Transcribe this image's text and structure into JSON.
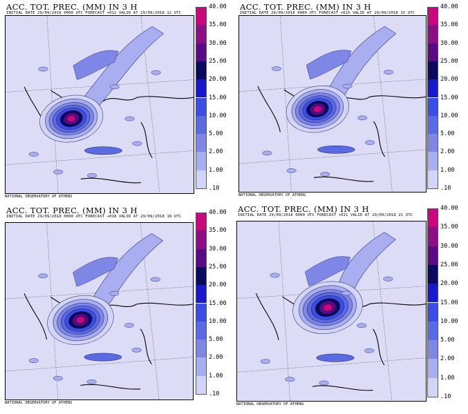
{
  "panels": [
    {
      "title": "ACC. TOT. PREC. (MM) IN 3 H",
      "subtitle": "INITIAL DATE 29/09/2018   0000 UTC FORECAST +012 VALID AT   29/09/2018   12 UTC",
      "credit": "NATIONAL OBSERVATORY OF ATHENS"
    },
    {
      "title": "ACC. TOT. PREC. (MM) IN 3 H",
      "subtitle": "INITIAL DATE 29/09/2018   0000 UTC FORECAST +015 VALID AT   29/09/2018   15 UTC",
      "credit": "NATIONAL OBSERVATORY OF ATHENS"
    },
    {
      "title": "ACC. TOT. PREC. (MM) IN 3 H",
      "subtitle": "INITIAL DATE 29/09/2018   0000 UTC FORECAST +018 VALID AT   29/09/2018   18 UTC",
      "credit": "NATIONAL OBSERVATORY OF ATHENS"
    },
    {
      "title": "ACC. TOT. PREC. (MM) IN 3 H",
      "subtitle": "INITIAL DATE 29/09/2018   0000 UTC FORECAST +021 VALID AT   29/09/2018   21 UTC",
      "credit": "NATIONAL OBSERVATORY OF ATHENS"
    }
  ],
  "legend": {
    "labels": [
      "40.00",
      "35.00",
      "30.00",
      "25.00",
      "20.00",
      "15.00",
      "10.00",
      "5.00",
      "2.00",
      "1.00",
      ".10"
    ],
    "colors": [
      "#c8087c",
      "#8e0e86",
      "#5a0a86",
      "#0a0a5e",
      "#1818cc",
      "#3a4ee6",
      "#5a6ae2",
      "#7e86e6",
      "#a8aef0",
      "#d2d4f8"
    ]
  },
  "colors": {
    "background": "#dcdcf6",
    "storm_core": "#5a0a86"
  }
}
